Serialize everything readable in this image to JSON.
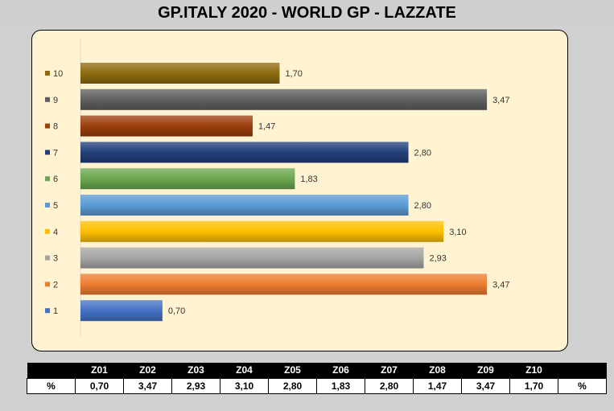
{
  "title": "GP.ITALY 2020 - WORLD GP - LAZZATE",
  "chart_data": {
    "type": "bar",
    "orientation": "horizontal",
    "categories": [
      "10",
      "9",
      "8",
      "7",
      "6",
      "5",
      "4",
      "3",
      "2",
      "1"
    ],
    "values": [
      1.7,
      3.47,
      1.47,
      2.8,
      1.83,
      2.8,
      3.1,
      2.93,
      3.47,
      0.7
    ],
    "data_labels": [
      "1,70",
      "3,47",
      "1,47",
      "2,80",
      "1,83",
      "2,80",
      "3,10",
      "2,93",
      "3,47",
      "0,70"
    ],
    "colors": [
      "#8d6b10",
      "#5f5f5f",
      "#9c3f0d",
      "#22407a",
      "#6aa84f",
      "#5b9bd5",
      "#ffc000",
      "#a5a5a5",
      "#ed7d31",
      "#4472c4"
    ],
    "xlim": [
      0,
      3.6
    ],
    "grid": false,
    "legend": "left",
    "title": "GP.ITALY 2020 - WORLD GP - LAZZATE"
  },
  "table": {
    "headers": [
      "",
      "Z01",
      "Z02",
      "Z03",
      "Z04",
      "Z05",
      "Z06",
      "Z07",
      "Z08",
      "Z09",
      "Z10",
      ""
    ],
    "row": [
      "%",
      "0,70",
      "3,47",
      "2,93",
      "3,10",
      "2,80",
      "1,83",
      "2,80",
      "1,47",
      "3,47",
      "1,70",
      "%"
    ]
  }
}
